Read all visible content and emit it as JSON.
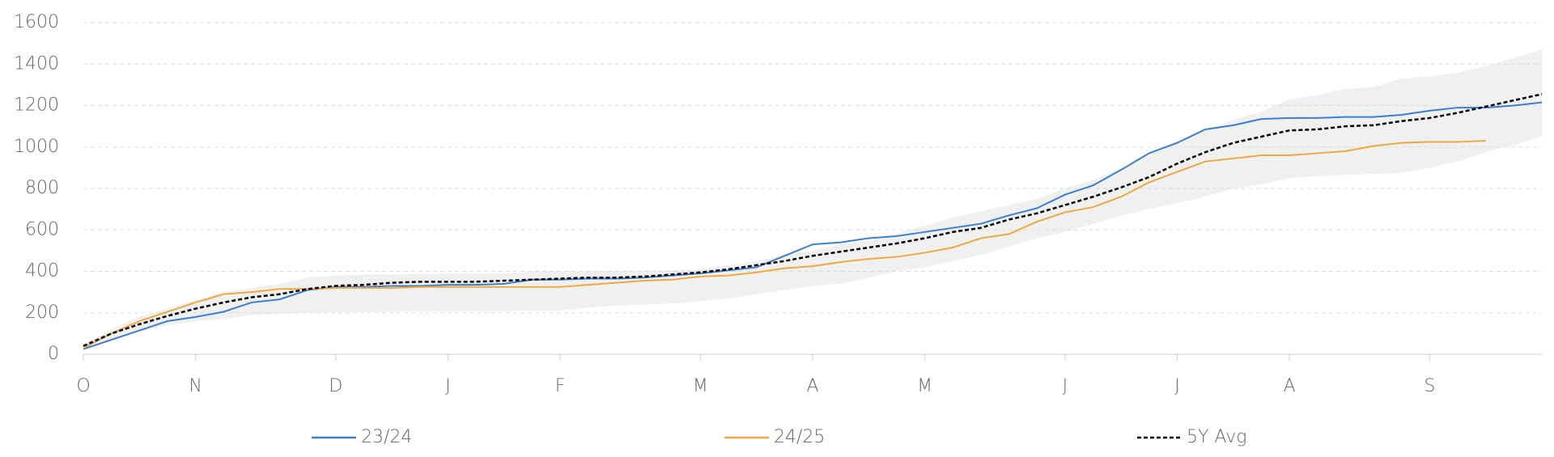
{
  "chart_data": {
    "type": "line",
    "categories": [
      "O",
      null,
      null,
      null,
      "N",
      null,
      null,
      null,
      null,
      "D",
      null,
      null,
      null,
      "J",
      null,
      null,
      null,
      "F",
      null,
      null,
      null,
      null,
      "M",
      null,
      null,
      null,
      "A",
      null,
      null,
      null,
      "M",
      null,
      null,
      null,
      null,
      "J",
      null,
      null,
      null,
      "J",
      null,
      null,
      null,
      "A",
      null,
      null,
      null,
      null,
      "S",
      null,
      null,
      null,
      null
    ],
    "series": [
      {
        "name": "23/24",
        "color": "#3a7fd5",
        "dash": false,
        "values": [
          25,
          70,
          115,
          160,
          180,
          205,
          250,
          265,
          310,
          325,
          325,
          330,
          330,
          335,
          335,
          340,
          360,
          360,
          365,
          365,
          370,
          380,
          390,
          405,
          420,
          475,
          530,
          540,
          560,
          570,
          590,
          610,
          630,
          670,
          705,
          770,
          815,
          890,
          970,
          1020,
          1085,
          1105,
          1135,
          1140,
          1140,
          1145,
          1145,
          1155,
          1175,
          1190,
          1190,
          1200,
          1215
        ]
      },
      {
        "name": "24/25",
        "color": "#f0a840",
        "dash": false,
        "values": [
          30,
          100,
          160,
          205,
          250,
          290,
          300,
          315,
          315,
          320,
          320,
          320,
          325,
          325,
          325,
          325,
          325,
          325,
          335,
          345,
          355,
          360,
          375,
          380,
          395,
          415,
          425,
          445,
          460,
          470,
          490,
          515,
          560,
          580,
          640,
          685,
          710,
          760,
          830,
          880,
          930,
          945,
          960,
          960,
          970,
          980,
          1005,
          1020,
          1025,
          1025,
          1030,
          null,
          null
        ]
      },
      {
        "name": "5Y Avg",
        "color": "#000000",
        "dash": true,
        "values": [
          40,
          100,
          145,
          185,
          220,
          250,
          275,
          290,
          315,
          330,
          335,
          345,
          350,
          350,
          350,
          355,
          360,
          365,
          370,
          370,
          375,
          385,
          395,
          410,
          430,
          450,
          475,
          495,
          515,
          535,
          560,
          590,
          610,
          650,
          680,
          720,
          760,
          805,
          855,
          920,
          975,
          1020,
          1050,
          1080,
          1085,
          1100,
          1105,
          1125,
          1140,
          1165,
          1195,
          1225,
          1255
        ]
      }
    ],
    "band": {
      "color": "#f0f0f0",
      "upper": [
        45,
        120,
        180,
        220,
        260,
        300,
        320,
        340,
        370,
        380,
        385,
        385,
        388,
        390,
        390,
        390,
        400,
        400,
        402,
        403,
        404,
        405,
        410,
        430,
        450,
        480,
        500,
        530,
        550,
        580,
        620,
        660,
        690,
        720,
        750,
        800,
        840,
        900,
        960,
        1030,
        1080,
        1130,
        1170,
        1230,
        1250,
        1280,
        1290,
        1330,
        1340,
        1360,
        1390,
        1430,
        1470
      ],
      "lower": [
        20,
        70,
        110,
        140,
        160,
        170,
        190,
        195,
        200,
        205,
        205,
        206,
        207,
        208,
        208,
        209,
        210,
        210,
        225,
        235,
        240,
        245,
        255,
        270,
        290,
        310,
        330,
        340,
        370,
        400,
        420,
        450,
        480,
        520,
        560,
        590,
        630,
        670,
        700,
        730,
        760,
        800,
        820,
        850,
        860,
        865,
        870,
        875,
        900,
        930,
        975,
        1010,
        1050
      ]
    },
    "ylim": [
      0,
      1600
    ],
    "yticks": [
      0,
      200,
      400,
      600,
      800,
      1000,
      1200,
      1400,
      1600
    ],
    "grid": true,
    "legend": "bottom"
  }
}
